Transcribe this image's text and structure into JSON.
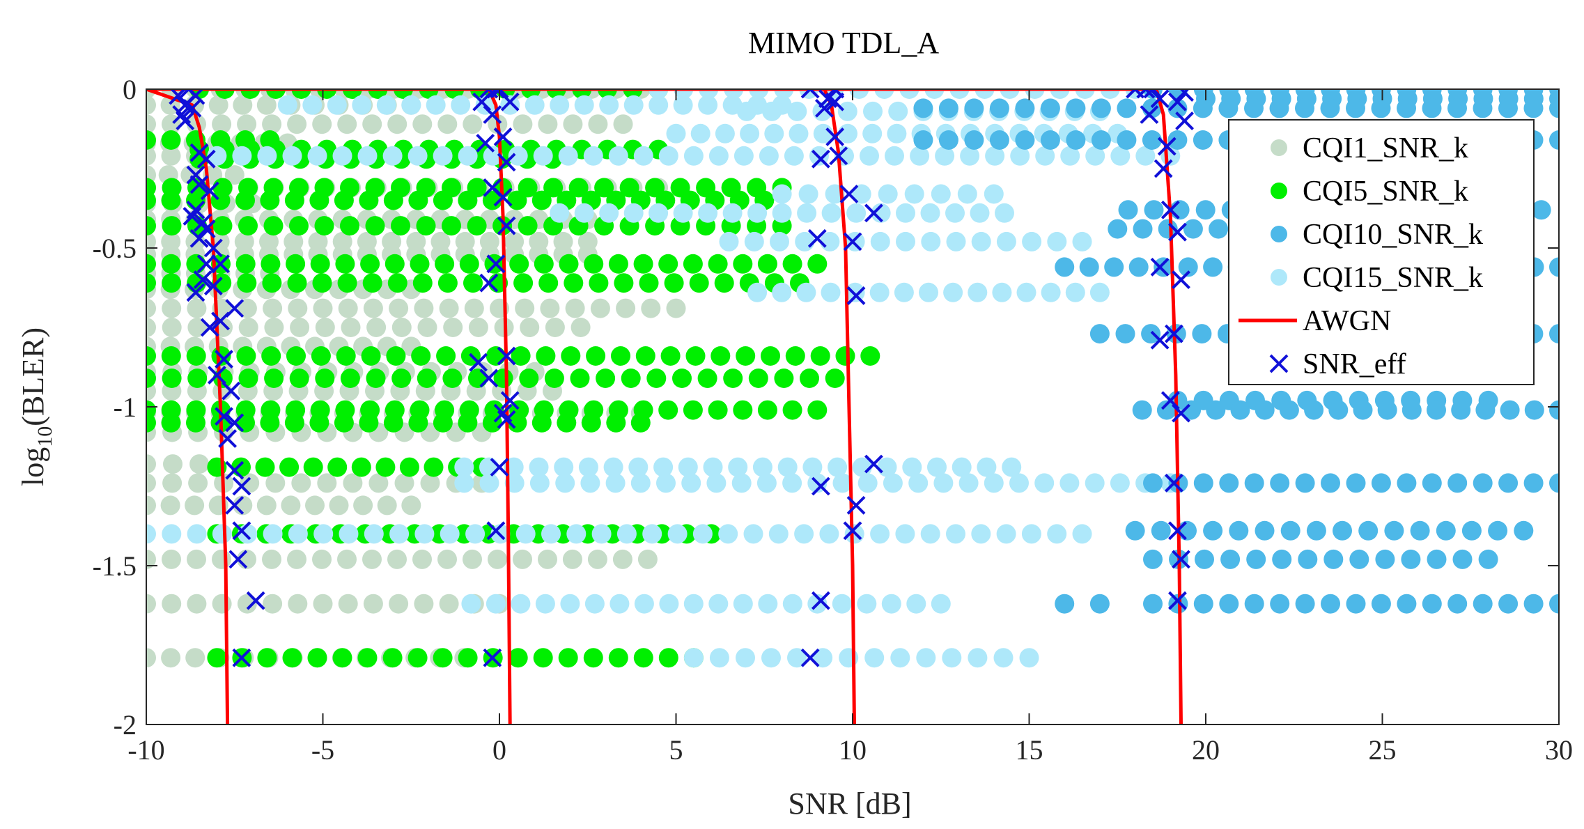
{
  "chart_data": {
    "type": "scatter",
    "title": "MIMO TDL_A",
    "xlabel": "SNR [dB]",
    "ylabel": {
      "base": "log",
      "sub": "10",
      "rest": "(BLER)"
    },
    "xlim": [
      -10,
      30
    ],
    "ylim": [
      -2,
      0
    ],
    "x_ticks": [
      -10,
      -5,
      0,
      5,
      10,
      15,
      20,
      25,
      30
    ],
    "y_ticks": [
      0,
      -0.5,
      -1,
      -1.5,
      -2
    ],
    "y_tick_labels": [
      "0",
      "-0.5",
      "-1",
      "-1.5",
      "-2"
    ],
    "grid": false,
    "legend_position": "top-right",
    "legend": [
      "CQI1_SNR_k",
      "CQI5_SNR_k",
      "CQI10_SNR_k",
      "CQI15_SNR_k",
      "AWGN",
      "SNR_eff"
    ],
    "colors": {
      "CQI1_SNR_k": "#c5dcc8",
      "CQI5_SNR_k": "#00ef00",
      "CQI10_SNR_k": "#4db8e8",
      "CQI15_SNR_k": "#aee8fa",
      "AWGN": "#ff0000",
      "SNR_eff": "#1010d8"
    },
    "series": [
      {
        "name": "CQI1_SNR_k",
        "kind": "horizontal-dot-bands",
        "bands": [
          {
            "y": -0.0,
            "x0": -10,
            "x1": 4.0
          },
          {
            "y": -0.05,
            "x0": -10,
            "x1": -2.5
          },
          {
            "y": -0.11,
            "x0": -10,
            "x1": 3.5
          },
          {
            "y": -0.17,
            "x0": -10,
            "x1": -6.0
          },
          {
            "y": -0.21,
            "x0": -10,
            "x1": -6.5
          },
          {
            "y": -0.27,
            "x0": -10,
            "x1": -7.5
          },
          {
            "y": -0.31,
            "x0": -10,
            "x1": 4.5
          },
          {
            "y": -0.36,
            "x0": -10,
            "x1": -7.0
          },
          {
            "y": -0.41,
            "x0": -10,
            "x1": 2.5
          },
          {
            "y": -0.48,
            "x0": -10,
            "x1": 2.5
          },
          {
            "y": -0.52,
            "x0": -10,
            "x1": 2.5
          },
          {
            "y": -0.58,
            "x0": -10,
            "x1": -6.5
          },
          {
            "y": -0.63,
            "x0": -10,
            "x1": -2.5
          },
          {
            "y": -0.69,
            "x0": -10,
            "x1": 5.0
          },
          {
            "y": -0.75,
            "x0": -10,
            "x1": 2.3
          },
          {
            "y": -0.81,
            "x0": -10,
            "x1": -2.5
          },
          {
            "y": -0.89,
            "x0": -10,
            "x1": 1.0
          },
          {
            "y": -0.95,
            "x0": -10,
            "x1": 1.5
          },
          {
            "y": -1.02,
            "x0": -10,
            "x1": 4.0
          },
          {
            "y": -1.08,
            "x0": -10,
            "x1": -0.5
          },
          {
            "y": -1.18,
            "x0": -10,
            "x1": -8.5
          },
          {
            "y": -1.24,
            "x0": -10,
            "x1": -0.5
          },
          {
            "y": -1.31,
            "x0": -10,
            "x1": -2.5
          },
          {
            "y": -1.48,
            "x0": -10,
            "x1": 4.2
          },
          {
            "y": -1.62,
            "x0": -10,
            "x1": 0.0
          },
          {
            "y": -1.79,
            "x0": -10,
            "x1": -1.0
          }
        ]
      },
      {
        "name": "CQI5_SNR_k",
        "kind": "horizontal-dot-bands",
        "bands": [
          {
            "y": -0.0,
            "x0": -8.5,
            "x1": 4.5
          },
          {
            "y": -0.16,
            "x0": -10,
            "x1": -6.5
          },
          {
            "y": -0.19,
            "x0": -8.5,
            "x1": 4.5
          },
          {
            "y": -0.22,
            "x0": -8.5,
            "x1": 1.5
          },
          {
            "y": -0.31,
            "x0": -10,
            "x1": 8.0
          },
          {
            "y": -0.35,
            "x0": -10,
            "x1": 7.5
          },
          {
            "y": -0.43,
            "x0": -10,
            "x1": 8.0
          },
          {
            "y": -0.55,
            "x0": -10,
            "x1": 9.0
          },
          {
            "y": -0.61,
            "x0": -10,
            "x1": 8.5
          },
          {
            "y": -0.84,
            "x0": -10,
            "x1": 10.5
          },
          {
            "y": -0.91,
            "x0": -10,
            "x1": 9.5
          },
          {
            "y": -1.01,
            "x0": -10,
            "x1": 9.0
          },
          {
            "y": -1.05,
            "x0": -10,
            "x1": 4.0
          },
          {
            "y": -1.19,
            "x0": -8.0,
            "x1": -0.5
          },
          {
            "y": -1.4,
            "x0": -8.0,
            "x1": 6.0
          },
          {
            "y": -1.79,
            "x0": -8.0,
            "x1": 5.5
          }
        ]
      },
      {
        "name": "CQI15_SNR_k",
        "kind": "horizontal-dot-bands",
        "bands": [
          {
            "y": 0.0,
            "x0": 4.5,
            "x1": 18.0
          },
          {
            "y": -0.05,
            "x0": -6.0,
            "x1": 8.0
          },
          {
            "y": -0.07,
            "x0": 7.0,
            "x1": 17.0
          },
          {
            "y": -0.14,
            "x0": 5.0,
            "x1": 17.5
          },
          {
            "y": -0.21,
            "x0": -8.0,
            "x1": 19.0
          },
          {
            "y": -0.33,
            "x0": 8.0,
            "x1": 14.0
          },
          {
            "y": -0.39,
            "x0": 1.7,
            "x1": 14.3
          },
          {
            "y": -0.48,
            "x0": 6.5,
            "x1": 16.5
          },
          {
            "y": -0.64,
            "x0": 7.3,
            "x1": 17.0
          },
          {
            "y": -1.19,
            "x0": -1.0,
            "x1": 14.5
          },
          {
            "y": -1.24,
            "x0": -1.0,
            "x1": 19.0
          },
          {
            "y": -1.4,
            "x0": -10,
            "x1": 16.5
          },
          {
            "y": -1.62,
            "x0": -0.8,
            "x1": 12.5
          },
          {
            "y": -1.79,
            "x0": 5.5,
            "x1": 15.0
          }
        ]
      },
      {
        "name": "CQI10_SNR_k",
        "kind": "horizontal-dot-bands",
        "bands": [
          {
            "y": 0.0,
            "x0": 18.5,
            "x1": 30.0
          },
          {
            "y": -0.03,
            "x0": 20.0,
            "x1": 30.0
          },
          {
            "y": -0.06,
            "x0": 12.0,
            "x1": 30.0
          },
          {
            "y": -0.16,
            "x0": 12.0,
            "x1": 30.0
          },
          {
            "y": -0.38,
            "x0": 17.8,
            "x1": 29.5
          },
          {
            "y": -0.44,
            "x0": 17.5,
            "x1": 27.5
          },
          {
            "y": -0.56,
            "x0": 16.0,
            "x1": 30.0
          },
          {
            "y": -0.77,
            "x0": 17.0,
            "x1": 30.0
          },
          {
            "y": -0.98,
            "x0": 19.2,
            "x1": 28.0
          },
          {
            "y": -1.01,
            "x0": 18.2,
            "x1": 30.0
          },
          {
            "y": -1.24,
            "x0": 18.5,
            "x1": 30.0
          },
          {
            "y": -1.39,
            "x0": 18.0,
            "x1": 29.0
          },
          {
            "y": -1.48,
            "x0": 18.5,
            "x1": 28.0
          },
          {
            "y": -1.62,
            "x0": 16.0,
            "x1": 17.0
          },
          {
            "y": -1.62,
            "x0": 18.5,
            "x1": 30.0
          }
        ]
      },
      {
        "name": "AWGN",
        "kind": "lines",
        "curves": [
          {
            "x": [
              -10.0,
              -8.7,
              -8.5,
              -8.3,
              -8.1,
              -7.9,
              -7.75,
              -7.7
            ],
            "y": [
              0.0,
              -0.05,
              -0.12,
              -0.25,
              -0.5,
              -1.0,
              -1.5,
              -2.0
            ]
          },
          {
            "x": [
              -10.0,
              -0.3,
              -0.1,
              0.0,
              0.1,
              0.2,
              0.25,
              0.3
            ],
            "y": [
              0.0,
              0.0,
              -0.05,
              -0.15,
              -0.4,
              -0.9,
              -1.4,
              -2.0
            ]
          },
          {
            "x": [
              -10.0,
              9.2,
              9.4,
              9.6,
              9.8,
              9.9,
              10.0,
              10.05
            ],
            "y": [
              0.0,
              0.0,
              -0.05,
              -0.2,
              -0.5,
              -1.0,
              -1.5,
              -2.0
            ]
          },
          {
            "x": [
              -10.0,
              18.6,
              18.8,
              19.0,
              19.15,
              19.25,
              19.3
            ],
            "y": [
              0.0,
              0.0,
              -0.08,
              -0.4,
              -0.9,
              -1.5,
              -2.0
            ]
          }
        ]
      },
      {
        "name": "SNR_eff",
        "kind": "markers",
        "x": [
          -9.1,
          -8.8,
          -8.6,
          -8.9,
          -9.0,
          -8.7,
          -8.9,
          -8.5,
          -8.3,
          -8.6,
          -8.5,
          -8.2,
          -8.6,
          -8.4,
          -8.3,
          -8.7,
          -8.5,
          -8.1,
          -8.3,
          -8.4,
          -8.1,
          -8.6,
          -7.9,
          -7.5,
          -7.9,
          -8.2,
          -7.8,
          -8.0,
          -7.6,
          -7.8,
          -7.7,
          -7.5,
          -7.5,
          -7.3,
          -7.5,
          -7.3,
          -7.4,
          -6.9,
          -7.3,
          -0.5,
          -0.3,
          0.0,
          -0.2,
          0.1,
          -0.4,
          0.2,
          -0.2,
          0.1,
          0.2,
          -0.1,
          -0.3,
          -0.6,
          0.2,
          -0.3,
          0.3,
          0.1,
          0.2,
          0.0,
          -0.1,
          -0.1,
          0.3,
          -0.2,
          8.8,
          9.3,
          9.5,
          9.2,
          9.5,
          9.6,
          9.1,
          9.9,
          10.6,
          9.0,
          10.0,
          10.1,
          10.6,
          9.1,
          10.1,
          10.0,
          9.1,
          8.8,
          9.5,
          18.0,
          18.3,
          18.5,
          18.7,
          18.4,
          18.9,
          18.8,
          19.0,
          19.2,
          18.7,
          19.3,
          19.1,
          18.7,
          19.0,
          19.3,
          19.1,
          19.2,
          19.3,
          19.2,
          19.4,
          19.2,
          19.4
        ],
        "y": [
          -0.02,
          0.0,
          -0.02,
          -0.05,
          -0.08,
          -0.06,
          -0.1,
          -0.2,
          -0.22,
          -0.27,
          -0.3,
          -0.32,
          -0.38,
          -0.42,
          -0.44,
          -0.4,
          -0.47,
          -0.5,
          -0.55,
          -0.6,
          -0.62,
          -0.64,
          -0.55,
          -0.69,
          -0.73,
          -0.75,
          -0.85,
          -0.9,
          -0.95,
          -1.03,
          -1.1,
          -1.05,
          -1.2,
          -1.25,
          -1.31,
          -1.39,
          -1.48,
          -1.61,
          -1.79,
          -0.04,
          0.0,
          0.0,
          -0.08,
          -0.15,
          -0.17,
          -0.23,
          -0.31,
          -0.34,
          -0.43,
          -0.55,
          -0.61,
          -0.86,
          -0.84,
          -0.91,
          -0.98,
          -1.02,
          -1.04,
          -1.19,
          -1.39,
          -0.0,
          -0.04,
          -1.79,
          0.0,
          -0.03,
          -0.04,
          -0.06,
          -0.15,
          -0.21,
          -0.22,
          -0.33,
          -0.39,
          -0.47,
          -0.48,
          -0.65,
          -1.18,
          -1.25,
          -1.31,
          -1.39,
          -1.61,
          -1.79,
          0.0,
          0.0,
          0.0,
          0.0,
          -0.03,
          -0.08,
          -0.18,
          -0.25,
          -0.38,
          -0.45,
          -0.56,
          -0.6,
          -0.77,
          -0.79,
          -0.98,
          -1.02,
          -1.24,
          -1.39,
          -1.48,
          -1.61,
          -0.01,
          -0.04,
          -0.1
        ]
      }
    ]
  }
}
